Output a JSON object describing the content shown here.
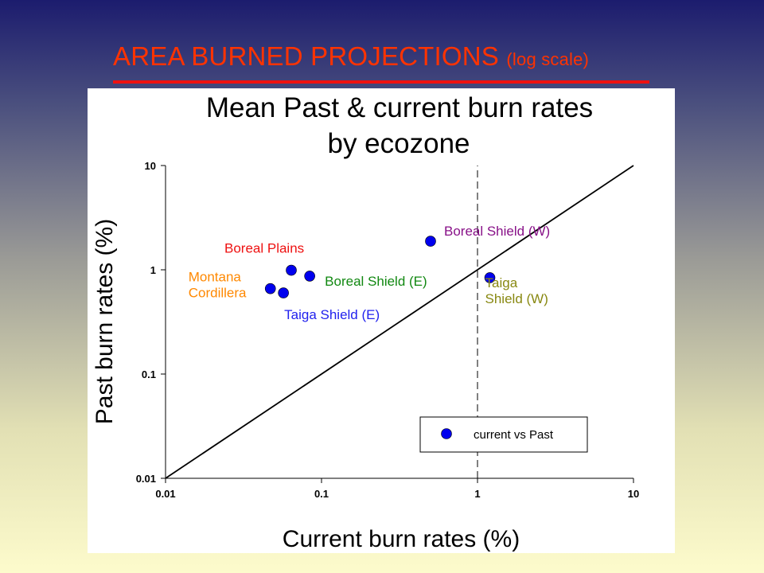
{
  "slide": {
    "title": "AREA BURNED PROJECTIONS",
    "subtitle": "(log scale)",
    "colors": {
      "title": "#ff3300",
      "underline": "#ee1111"
    }
  },
  "chart_data": {
    "type": "scatter",
    "title_line1": "Mean Past & current burn rates",
    "title_line2": "by ecozone",
    "xlabel": "Current burn rates (%)",
    "ylabel": "Past burn rates (%)",
    "x_scale": "log",
    "y_scale": "log",
    "xlim": [
      0.01,
      10
    ],
    "ylim": [
      0.01,
      10
    ],
    "x_ticks": [
      "0.01",
      "0.1",
      "1",
      "10"
    ],
    "y_ticks": [
      "0.01",
      "0.1",
      "1",
      "10"
    ],
    "grid": false,
    "legend": {
      "placement": "bottom-right",
      "entries": [
        "current vs Past"
      ]
    },
    "marker_color": "#0000ee",
    "reference_line": {
      "type": "identity",
      "from": [
        0.01,
        0.01
      ],
      "to": [
        10,
        10
      ]
    },
    "vertical_dashed_line_x": 1,
    "series": [
      {
        "name": "current vs Past",
        "points": [
          {
            "x": 0.047,
            "y": 0.66,
            "label": [
              "Montana",
              "Cordillera"
            ],
            "label_color": "#ff8800"
          },
          {
            "x": 0.057,
            "y": 0.6,
            "label": [
              "Taiga Shield (E)"
            ],
            "label_color": "#2222ee"
          },
          {
            "x": 0.064,
            "y": 0.99,
            "label": [
              "Boreal Plains"
            ],
            "label_color": "#ee1111"
          },
          {
            "x": 0.084,
            "y": 0.87,
            "label": [
              "Boreal Shield (E)"
            ],
            "label_color": "#118811"
          },
          {
            "x": 0.5,
            "y": 1.88,
            "label": [
              "Boreal Shield (W)"
            ],
            "label_color": "#881188"
          },
          {
            "x": 1.2,
            "y": 0.84,
            "label": [
              "Taiga",
              "Shield (W)"
            ],
            "label_color": "#888811"
          }
        ]
      }
    ]
  }
}
